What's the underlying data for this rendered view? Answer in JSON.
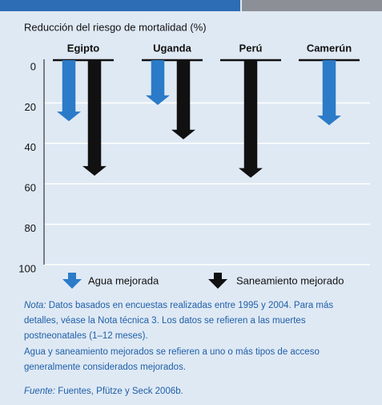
{
  "chart_data": {
    "type": "arrow",
    "title": "Reducción del riesgo de mortalidad (%)",
    "categories": [
      "Egipto",
      "Uganda",
      "Perú",
      "Camerún"
    ],
    "series": [
      {
        "name": "Agua mejorada",
        "color": "#2b7bc8",
        "values": [
          29,
          21,
          null,
          31
        ]
      },
      {
        "name": "Saneamiento mejorado",
        "color": "#111111",
        "values": [
          56,
          38,
          57,
          null
        ]
      }
    ],
    "ylim": [
      0,
      100
    ],
    "yticks": [
      0,
      20,
      40,
      60,
      80,
      100
    ],
    "inverted": true,
    "grid": true
  },
  "notes": {
    "label": "Nota:",
    "lines": [
      "Datos basados en encuestas realizadas entre 1995 y 2004. Para más",
      "detalles, véase la Nota técnica 3. Los datos se refieren a las muertes",
      "postneonatales (1–12 meses).",
      "Agua y saneamiento mejorados se refieren a uno o más tipos de acceso",
      "generalmente considerados mejorados."
    ]
  },
  "source": {
    "label": "Fuente:",
    "text": "Fuentes, Pfütze y Seck 2006b."
  }
}
